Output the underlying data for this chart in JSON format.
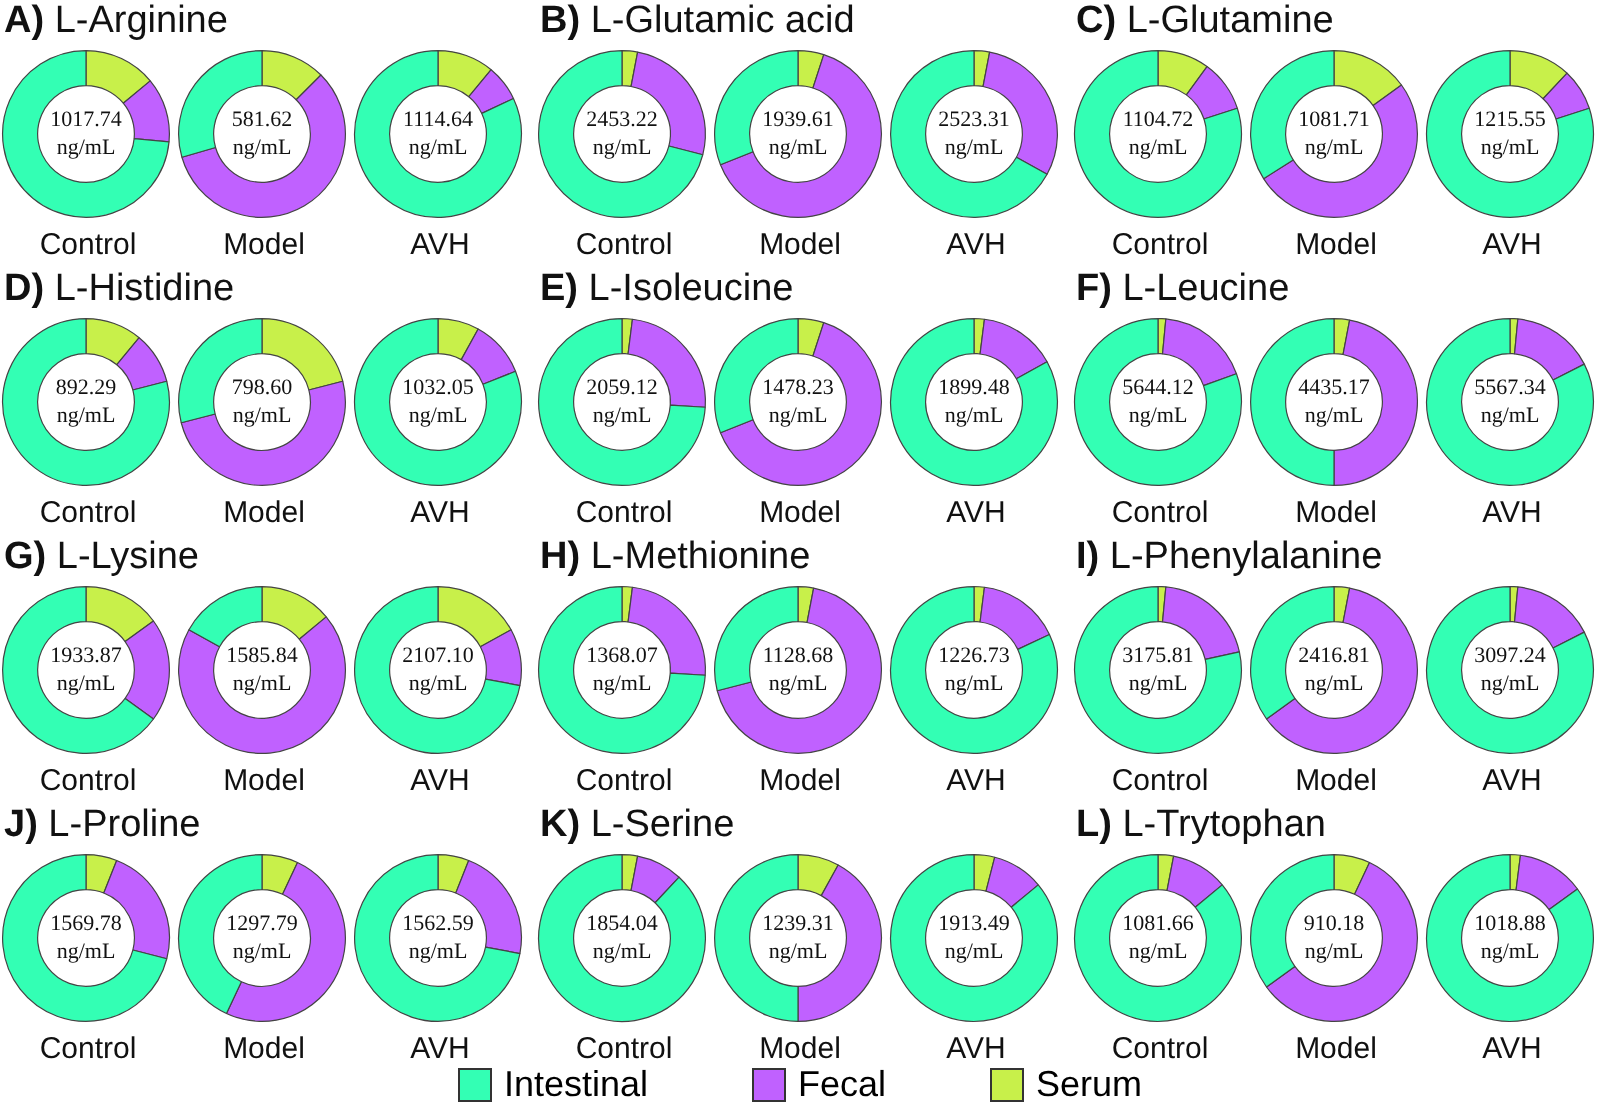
{
  "chart_data": [
    {
      "type": "donut",
      "title": "A) L-Arginine",
      "xlabel": "Control",
      "annotations": [
        "1017.74",
        "ng/mL"
      ],
      "categories": [
        "Intestinal",
        "Fecal",
        "Serum"
      ],
      "values": [
        73.5,
        12.5,
        14
      ],
      "colors": [
        "#33ffb4",
        "#c061ff",
        "#c8f04a"
      ],
      "legend": "bottom"
    },
    {
      "type": "donut",
      "xlabel": "Model",
      "annotations": [
        "581.62",
        "ng/mL"
      ],
      "values": [
        29.5,
        58,
        12.5
      ],
      "colors": [
        "#33ffb4",
        "#c061ff",
        "#c8f04a"
      ]
    },
    {
      "type": "donut",
      "xlabel": "AVH",
      "annotations": [
        "1114.64",
        "ng/mL"
      ],
      "values": [
        82,
        7,
        11
      ],
      "colors": [
        "#33ffb4",
        "#c061ff",
        "#c8f04a"
      ]
    },
    {
      "type": "donut",
      "title": "B) L-Glutamic acid",
      "xlabel": "Control",
      "annotations": [
        "2453.22",
        "ng/mL"
      ],
      "values": [
        71,
        26,
        3
      ],
      "colors": [
        "#33ffb4",
        "#c061ff",
        "#c8f04a"
      ]
    },
    {
      "type": "donut",
      "xlabel": "Model",
      "annotations": [
        "1939.61",
        "ng/mL"
      ],
      "values": [
        31,
        64,
        5
      ],
      "colors": [
        "#33ffb4",
        "#c061ff",
        "#c8f04a"
      ]
    },
    {
      "type": "donut",
      "xlabel": "AVH",
      "annotations": [
        "2523.31",
        "ng/mL"
      ],
      "values": [
        67,
        30,
        3
      ],
      "colors": [
        "#33ffb4",
        "#c061ff",
        "#c8f04a"
      ]
    },
    {
      "type": "donut",
      "title": "C) L-Glutamine",
      "xlabel": "Control",
      "annotations": [
        "1104.72",
        "ng/mL"
      ],
      "values": [
        80,
        10,
        10
      ],
      "colors": [
        "#33ffb4",
        "#c061ff",
        "#c8f04a"
      ]
    },
    {
      "type": "donut",
      "xlabel": "Model",
      "annotations": [
        "1081.71",
        "ng/mL"
      ],
      "values": [
        34,
        51,
        15
      ],
      "colors": [
        "#33ffb4",
        "#c061ff",
        "#c8f04a"
      ]
    },
    {
      "type": "donut",
      "xlabel": "AVH",
      "annotations": [
        "1215.55",
        "ng/mL"
      ],
      "values": [
        80,
        8,
        12
      ],
      "colors": [
        "#33ffb4",
        "#c061ff",
        "#c8f04a"
      ]
    },
    {
      "type": "donut",
      "title": "D) L-Histidine",
      "xlabel": "Control",
      "annotations": [
        "892.29",
        "ng/mL"
      ],
      "values": [
        79,
        10,
        11
      ],
      "colors": [
        "#33ffb4",
        "#c061ff",
        "#c8f04a"
      ]
    },
    {
      "type": "donut",
      "xlabel": "Model",
      "annotations": [
        "798.60",
        "ng/mL"
      ],
      "values": [
        29,
        50,
        21
      ],
      "colors": [
        "#33ffb4",
        "#c061ff",
        "#c8f04a"
      ]
    },
    {
      "type": "donut",
      "xlabel": "AVH",
      "annotations": [
        "1032.05",
        "ng/mL"
      ],
      "values": [
        81,
        11,
        8
      ],
      "colors": [
        "#33ffb4",
        "#c061ff",
        "#c8f04a"
      ]
    },
    {
      "type": "donut",
      "title": "E) L-Isoleucine",
      "xlabel": "Control",
      "annotations": [
        "2059.12",
        "ng/mL"
      ],
      "values": [
        74,
        24,
        2
      ],
      "colors": [
        "#33ffb4",
        "#c061ff",
        "#c8f04a"
      ]
    },
    {
      "type": "donut",
      "xlabel": "Model",
      "annotations": [
        "1478.23",
        "ng/mL"
      ],
      "values": [
        31,
        64,
        5
      ],
      "colors": [
        "#33ffb4",
        "#c061ff",
        "#c8f04a"
      ]
    },
    {
      "type": "donut",
      "xlabel": "AVH",
      "annotations": [
        "1899.48",
        "ng/mL"
      ],
      "values": [
        83,
        15,
        2
      ],
      "colors": [
        "#33ffb4",
        "#c061ff",
        "#c8f04a"
      ]
    },
    {
      "type": "donut",
      "title": "F) L-Leucine",
      "xlabel": "Control",
      "annotations": [
        "5644.12",
        "ng/mL"
      ],
      "values": [
        80.5,
        18,
        1.5
      ],
      "colors": [
        "#33ffb4",
        "#c061ff",
        "#c8f04a"
      ]
    },
    {
      "type": "donut",
      "xlabel": "Model",
      "annotations": [
        "4435.17",
        "ng/mL"
      ],
      "values": [
        50,
        47,
        3
      ],
      "colors": [
        "#33ffb4",
        "#c061ff",
        "#c8f04a"
      ]
    },
    {
      "type": "donut",
      "xlabel": "AVH",
      "annotations": [
        "5567.34",
        "ng/mL"
      ],
      "values": [
        82.5,
        16,
        1.5
      ],
      "colors": [
        "#33ffb4",
        "#c061ff",
        "#c8f04a"
      ]
    },
    {
      "type": "donut",
      "title": "G) L-Lysine",
      "xlabel": "Control",
      "annotations": [
        "1933.87",
        "ng/mL"
      ],
      "values": [
        65,
        20,
        15
      ],
      "colors": [
        "#33ffb4",
        "#c061ff",
        "#c8f04a"
      ]
    },
    {
      "type": "donut",
      "xlabel": "Model",
      "annotations": [
        "1585.84",
        "ng/mL"
      ],
      "values": [
        17,
        69,
        14
      ],
      "colors": [
        "#33ffb4",
        "#c061ff",
        "#c8f04a"
      ]
    },
    {
      "type": "donut",
      "xlabel": "AVH",
      "annotations": [
        "2107.10",
        "ng/mL"
      ],
      "values": [
        72,
        11,
        17
      ],
      "colors": [
        "#33ffb4",
        "#c061ff",
        "#c8f04a"
      ]
    },
    {
      "type": "donut",
      "title": "H) L-Methionine",
      "xlabel": "Control",
      "annotations": [
        "1368.07",
        "ng/mL"
      ],
      "values": [
        74,
        24,
        2
      ],
      "colors": [
        "#33ffb4",
        "#c061ff",
        "#c8f04a"
      ]
    },
    {
      "type": "donut",
      "xlabel": "Model",
      "annotations": [
        "1128.68",
        "ng/mL"
      ],
      "values": [
        29,
        68,
        3
      ],
      "colors": [
        "#33ffb4",
        "#c061ff",
        "#c8f04a"
      ]
    },
    {
      "type": "donut",
      "xlabel": "AVH",
      "annotations": [
        "1226.73",
        "ng/mL"
      ],
      "values": [
        82,
        16,
        2
      ],
      "colors": [
        "#33ffb4",
        "#c061ff",
        "#c8f04a"
      ]
    },
    {
      "type": "donut",
      "title": "I) L-Phenylalanine",
      "xlabel": "Control",
      "annotations": [
        "3175.81",
        "ng/mL"
      ],
      "values": [
        78.5,
        20,
        1.5
      ],
      "colors": [
        "#33ffb4",
        "#c061ff",
        "#c8f04a"
      ]
    },
    {
      "type": "donut",
      "xlabel": "Model",
      "annotations": [
        "2416.81",
        "ng/mL"
      ],
      "values": [
        35,
        62,
        3
      ],
      "colors": [
        "#33ffb4",
        "#c061ff",
        "#c8f04a"
      ]
    },
    {
      "type": "donut",
      "xlabel": "AVH",
      "annotations": [
        "3097.24",
        "ng/mL"
      ],
      "values": [
        82.5,
        16,
        1.5
      ],
      "colors": [
        "#33ffb4",
        "#c061ff",
        "#c8f04a"
      ]
    },
    {
      "type": "donut",
      "title": "J) L-Proline",
      "xlabel": "Control",
      "annotations": [
        "1569.78",
        "ng/mL"
      ],
      "values": [
        71,
        23,
        6
      ],
      "colors": [
        "#33ffb4",
        "#c061ff",
        "#c8f04a"
      ]
    },
    {
      "type": "donut",
      "xlabel": "Model",
      "annotations": [
        "1297.79",
        "ng/mL"
      ],
      "values": [
        43,
        50,
        7
      ],
      "colors": [
        "#33ffb4",
        "#c061ff",
        "#c8f04a"
      ]
    },
    {
      "type": "donut",
      "xlabel": "AVH",
      "annotations": [
        "1562.59",
        "ng/mL"
      ],
      "values": [
        72,
        22,
        6
      ],
      "colors": [
        "#33ffb4",
        "#c061ff",
        "#c8f04a"
      ]
    },
    {
      "type": "donut",
      "title": "K) L-Serine",
      "xlabel": "Control",
      "annotations": [
        "1854.04",
        "ng/mL"
      ],
      "values": [
        88,
        9,
        3
      ],
      "colors": [
        "#33ffb4",
        "#c061ff",
        "#c8f04a"
      ]
    },
    {
      "type": "donut",
      "xlabel": "Model",
      "annotations": [
        "1239.31",
        "ng/mL"
      ],
      "values": [
        50,
        42,
        8
      ],
      "colors": [
        "#33ffb4",
        "#c061ff",
        "#c8f04a"
      ]
    },
    {
      "type": "donut",
      "xlabel": "AVH",
      "annotations": [
        "1913.49",
        "ng/mL"
      ],
      "values": [
        86,
        10,
        4
      ],
      "colors": [
        "#33ffb4",
        "#c061ff",
        "#c8f04a"
      ]
    },
    {
      "type": "donut",
      "title": "L) L-Trytophan",
      "xlabel": "Control",
      "annotations": [
        "1081.66",
        "ng/mL"
      ],
      "values": [
        86,
        11,
        3
      ],
      "colors": [
        "#33ffb4",
        "#c061ff",
        "#c8f04a"
      ]
    },
    {
      "type": "donut",
      "xlabel": "Model",
      "annotations": [
        "910.18",
        "ng/mL"
      ],
      "values": [
        35,
        58,
        7
      ],
      "colors": [
        "#33ffb4",
        "#c061ff",
        "#c8f04a"
      ]
    },
    {
      "type": "donut",
      "xlabel": "AVH",
      "annotations": [
        "1018.88",
        "ng/mL"
      ],
      "values": [
        85,
        13,
        2
      ],
      "colors": [
        "#33ffb4",
        "#c061ff",
        "#c8f04a"
      ]
    }
  ]
}
